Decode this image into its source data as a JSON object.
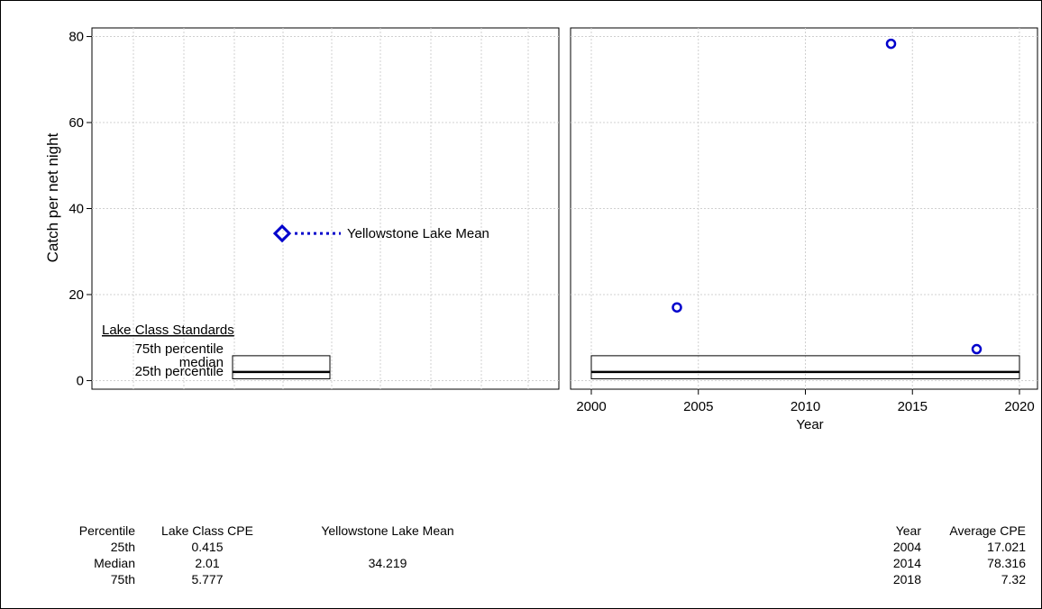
{
  "chart_data": [
    {
      "type": "scatter",
      "panel": "lake-class",
      "ylabel": "Catch per net night",
      "ylim": [
        -2,
        82
      ],
      "y_ticks": [
        0,
        20,
        40,
        60,
        80
      ],
      "grid": true,
      "lake_mean": {
        "value": 34.219,
        "label": "Yellowstone Lake Mean",
        "marker": "diamond",
        "color": "#0000cc"
      },
      "standards": {
        "title": "Lake Class Standards",
        "p25": 0.415,
        "median": 2.01,
        "p75": 5.777,
        "p25_label": "25th percentile",
        "median_label": "median",
        "p75_label": "75th percentile"
      }
    },
    {
      "type": "scatter",
      "panel": "time-series",
      "xlabel": "Year",
      "xlim": [
        2000,
        20200
      ],
      "x_ticks": [
        2000,
        2005,
        2010,
        2015,
        2020
      ],
      "ylim": [
        -2,
        82
      ],
      "grid": true,
      "x": [
        2004,
        2014,
        2018
      ],
      "y": [
        17.021,
        78.316,
        7.32
      ],
      "marker_color": "#0000cc",
      "band": {
        "p25": 0.415,
        "median": 2.01,
        "p75": 5.777,
        "x_from": 2000,
        "x_to": 2020
      }
    }
  ],
  "tables": {
    "left": {
      "headers": [
        "Percentile",
        "Lake Class CPE",
        "Yellowstone Lake Mean"
      ],
      "rows": [
        [
          "25th",
          "0.415",
          ""
        ],
        [
          "Median",
          "2.01",
          "34.219"
        ],
        [
          "75th",
          "5.777",
          ""
        ]
      ]
    },
    "right": {
      "headers": [
        "Year",
        "Average CPE"
      ],
      "rows": [
        [
          "2004",
          "17.021"
        ],
        [
          "2014",
          "78.316"
        ],
        [
          "2018",
          "7.32"
        ]
      ]
    }
  }
}
